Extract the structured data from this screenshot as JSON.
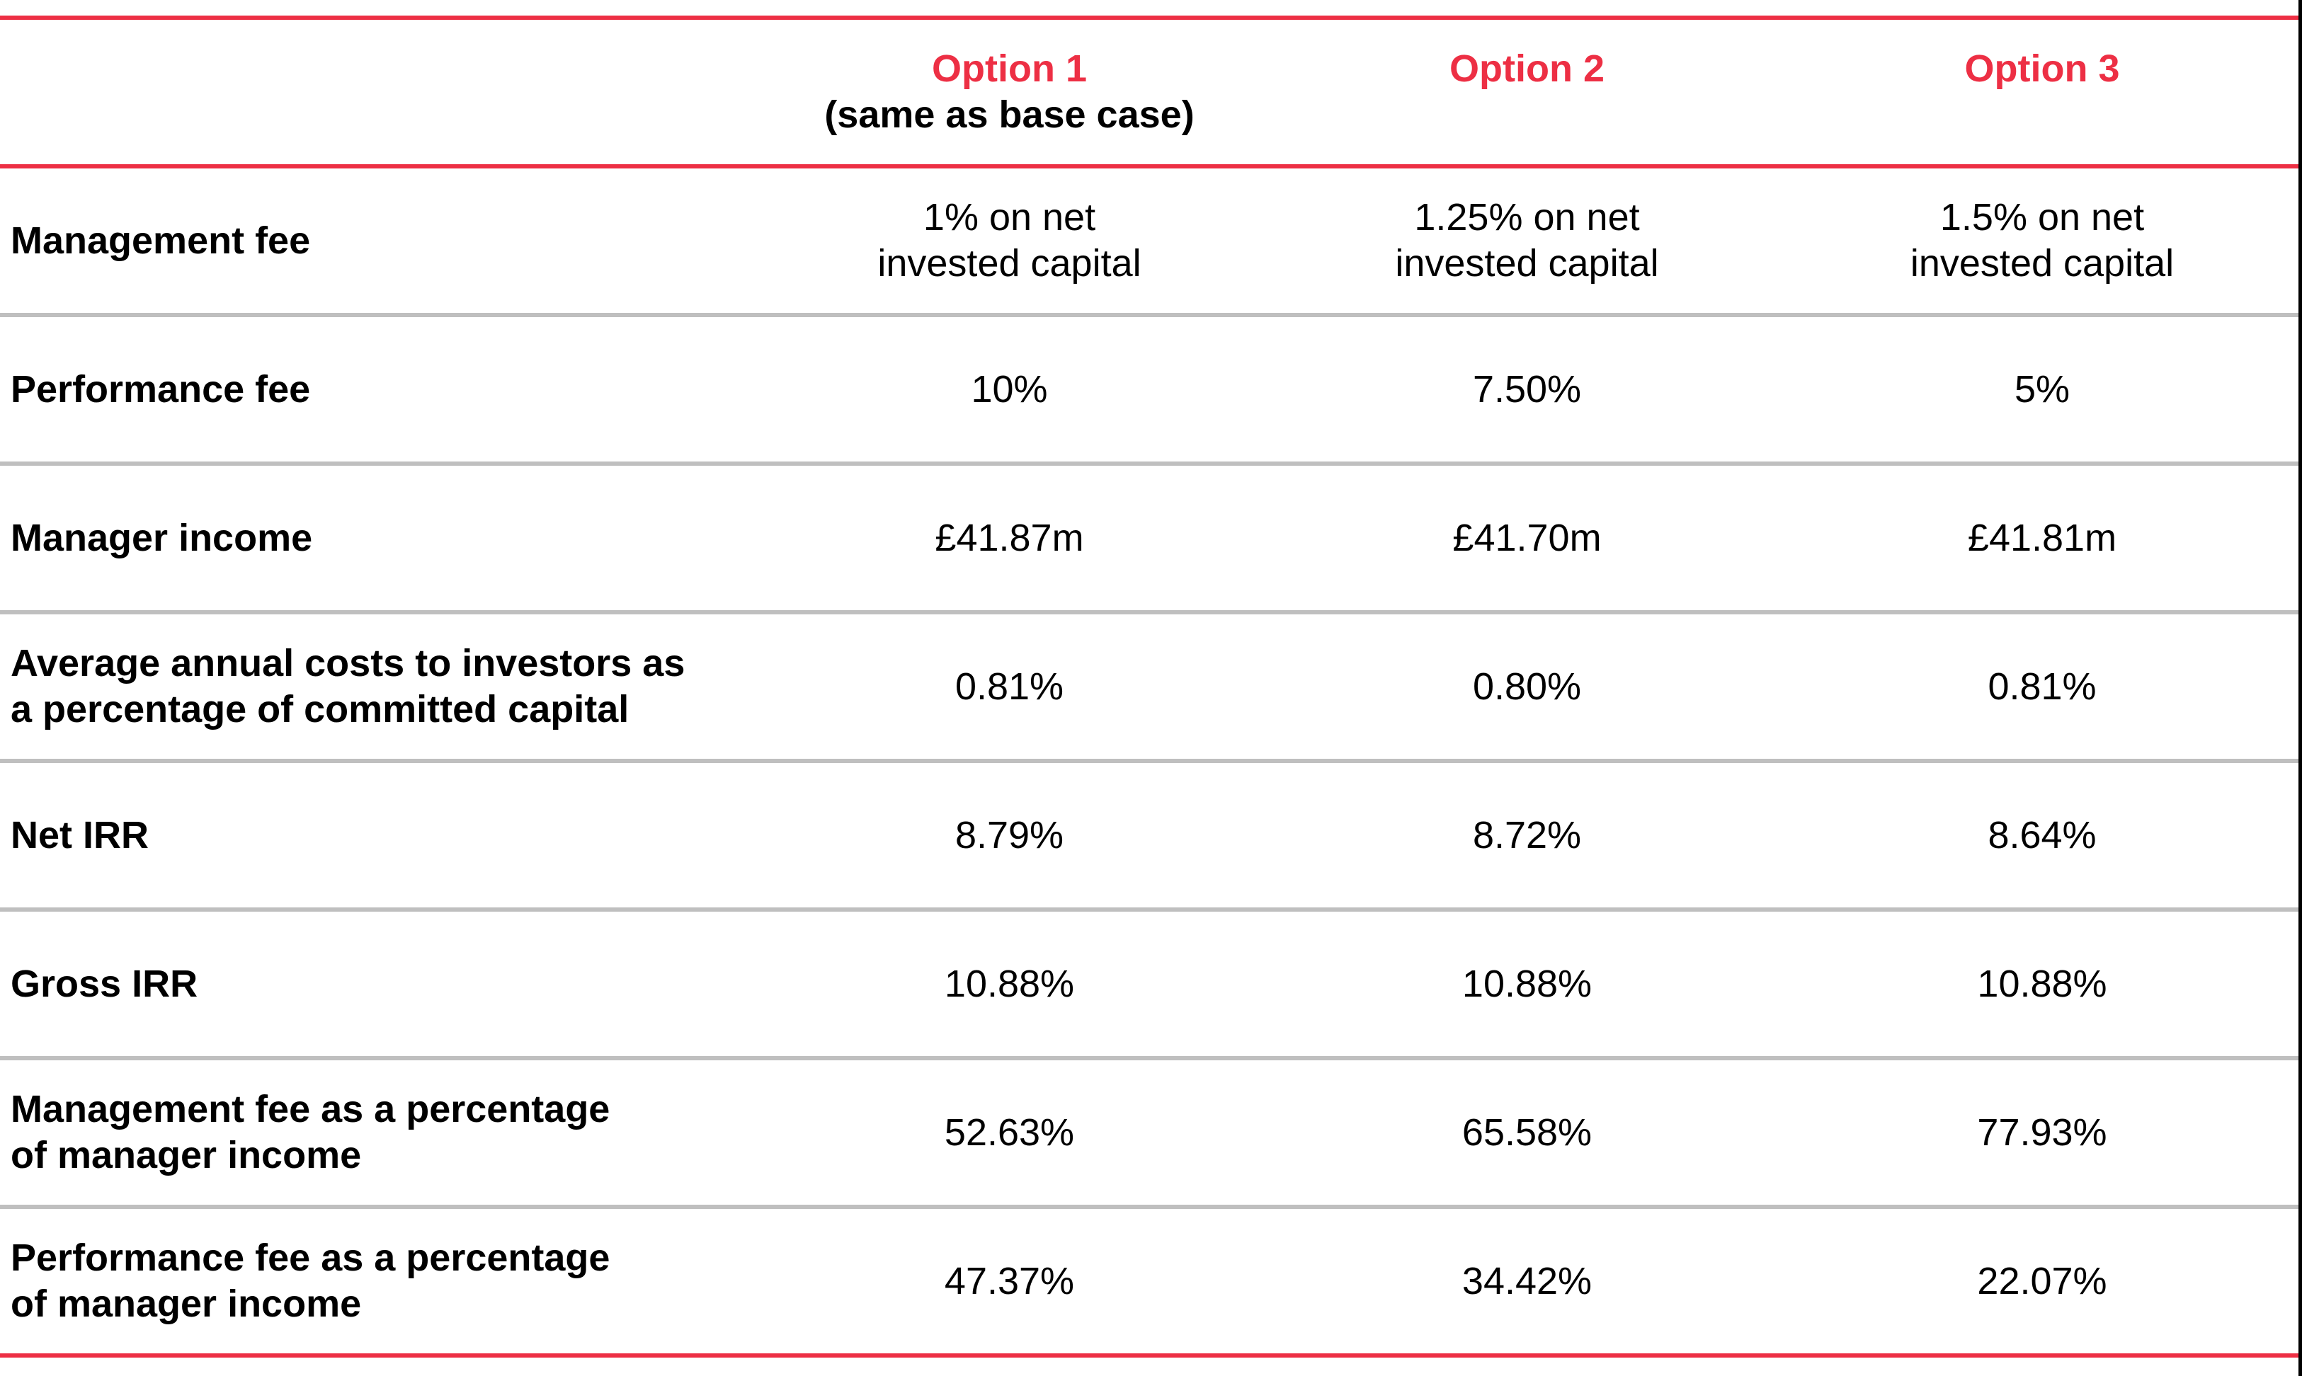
{
  "page": {
    "accent_red": "#ED2F44",
    "divider_gray": "#BFBFBF",
    "background": "#FFFFFF"
  },
  "table": {
    "header": {
      "columns": [
        {
          "title": "Option 1",
          "subtitle": "(same as base case)"
        },
        {
          "title": "Option 2",
          "subtitle": ""
        },
        {
          "title": "Option 3",
          "subtitle": ""
        }
      ]
    },
    "rows": [
      {
        "label": "Management fee",
        "values": [
          "1% on net\ninvested capital",
          "1.25% on net\ninvested capital",
          "1.5% on net\ninvested capital"
        ]
      },
      {
        "label": "Performance fee",
        "values": [
          "10%",
          "7.50%",
          "5%"
        ]
      },
      {
        "label": "Manager income",
        "values": [
          "£41.87m",
          "£41.70m",
          "£41.81m"
        ]
      },
      {
        "label": "Average annual costs to investors as\na percentage of committed capital",
        "values": [
          "0.81%",
          "0.80%",
          "0.81%"
        ]
      },
      {
        "label": "Net IRR",
        "values": [
          "8.79%",
          "8.72%",
          "8.64%"
        ]
      },
      {
        "label": "Gross IRR",
        "values": [
          "10.88%",
          "10.88%",
          "10.88%"
        ]
      },
      {
        "label": "Management fee as a percentage\nof manager income",
        "values": [
          "52.63%",
          "65.58%",
          "77.93%"
        ]
      },
      {
        "label": "Performance fee as a percentage\nof manager income",
        "values": [
          "47.37%",
          "34.42%",
          "22.07%"
        ]
      }
    ]
  }
}
